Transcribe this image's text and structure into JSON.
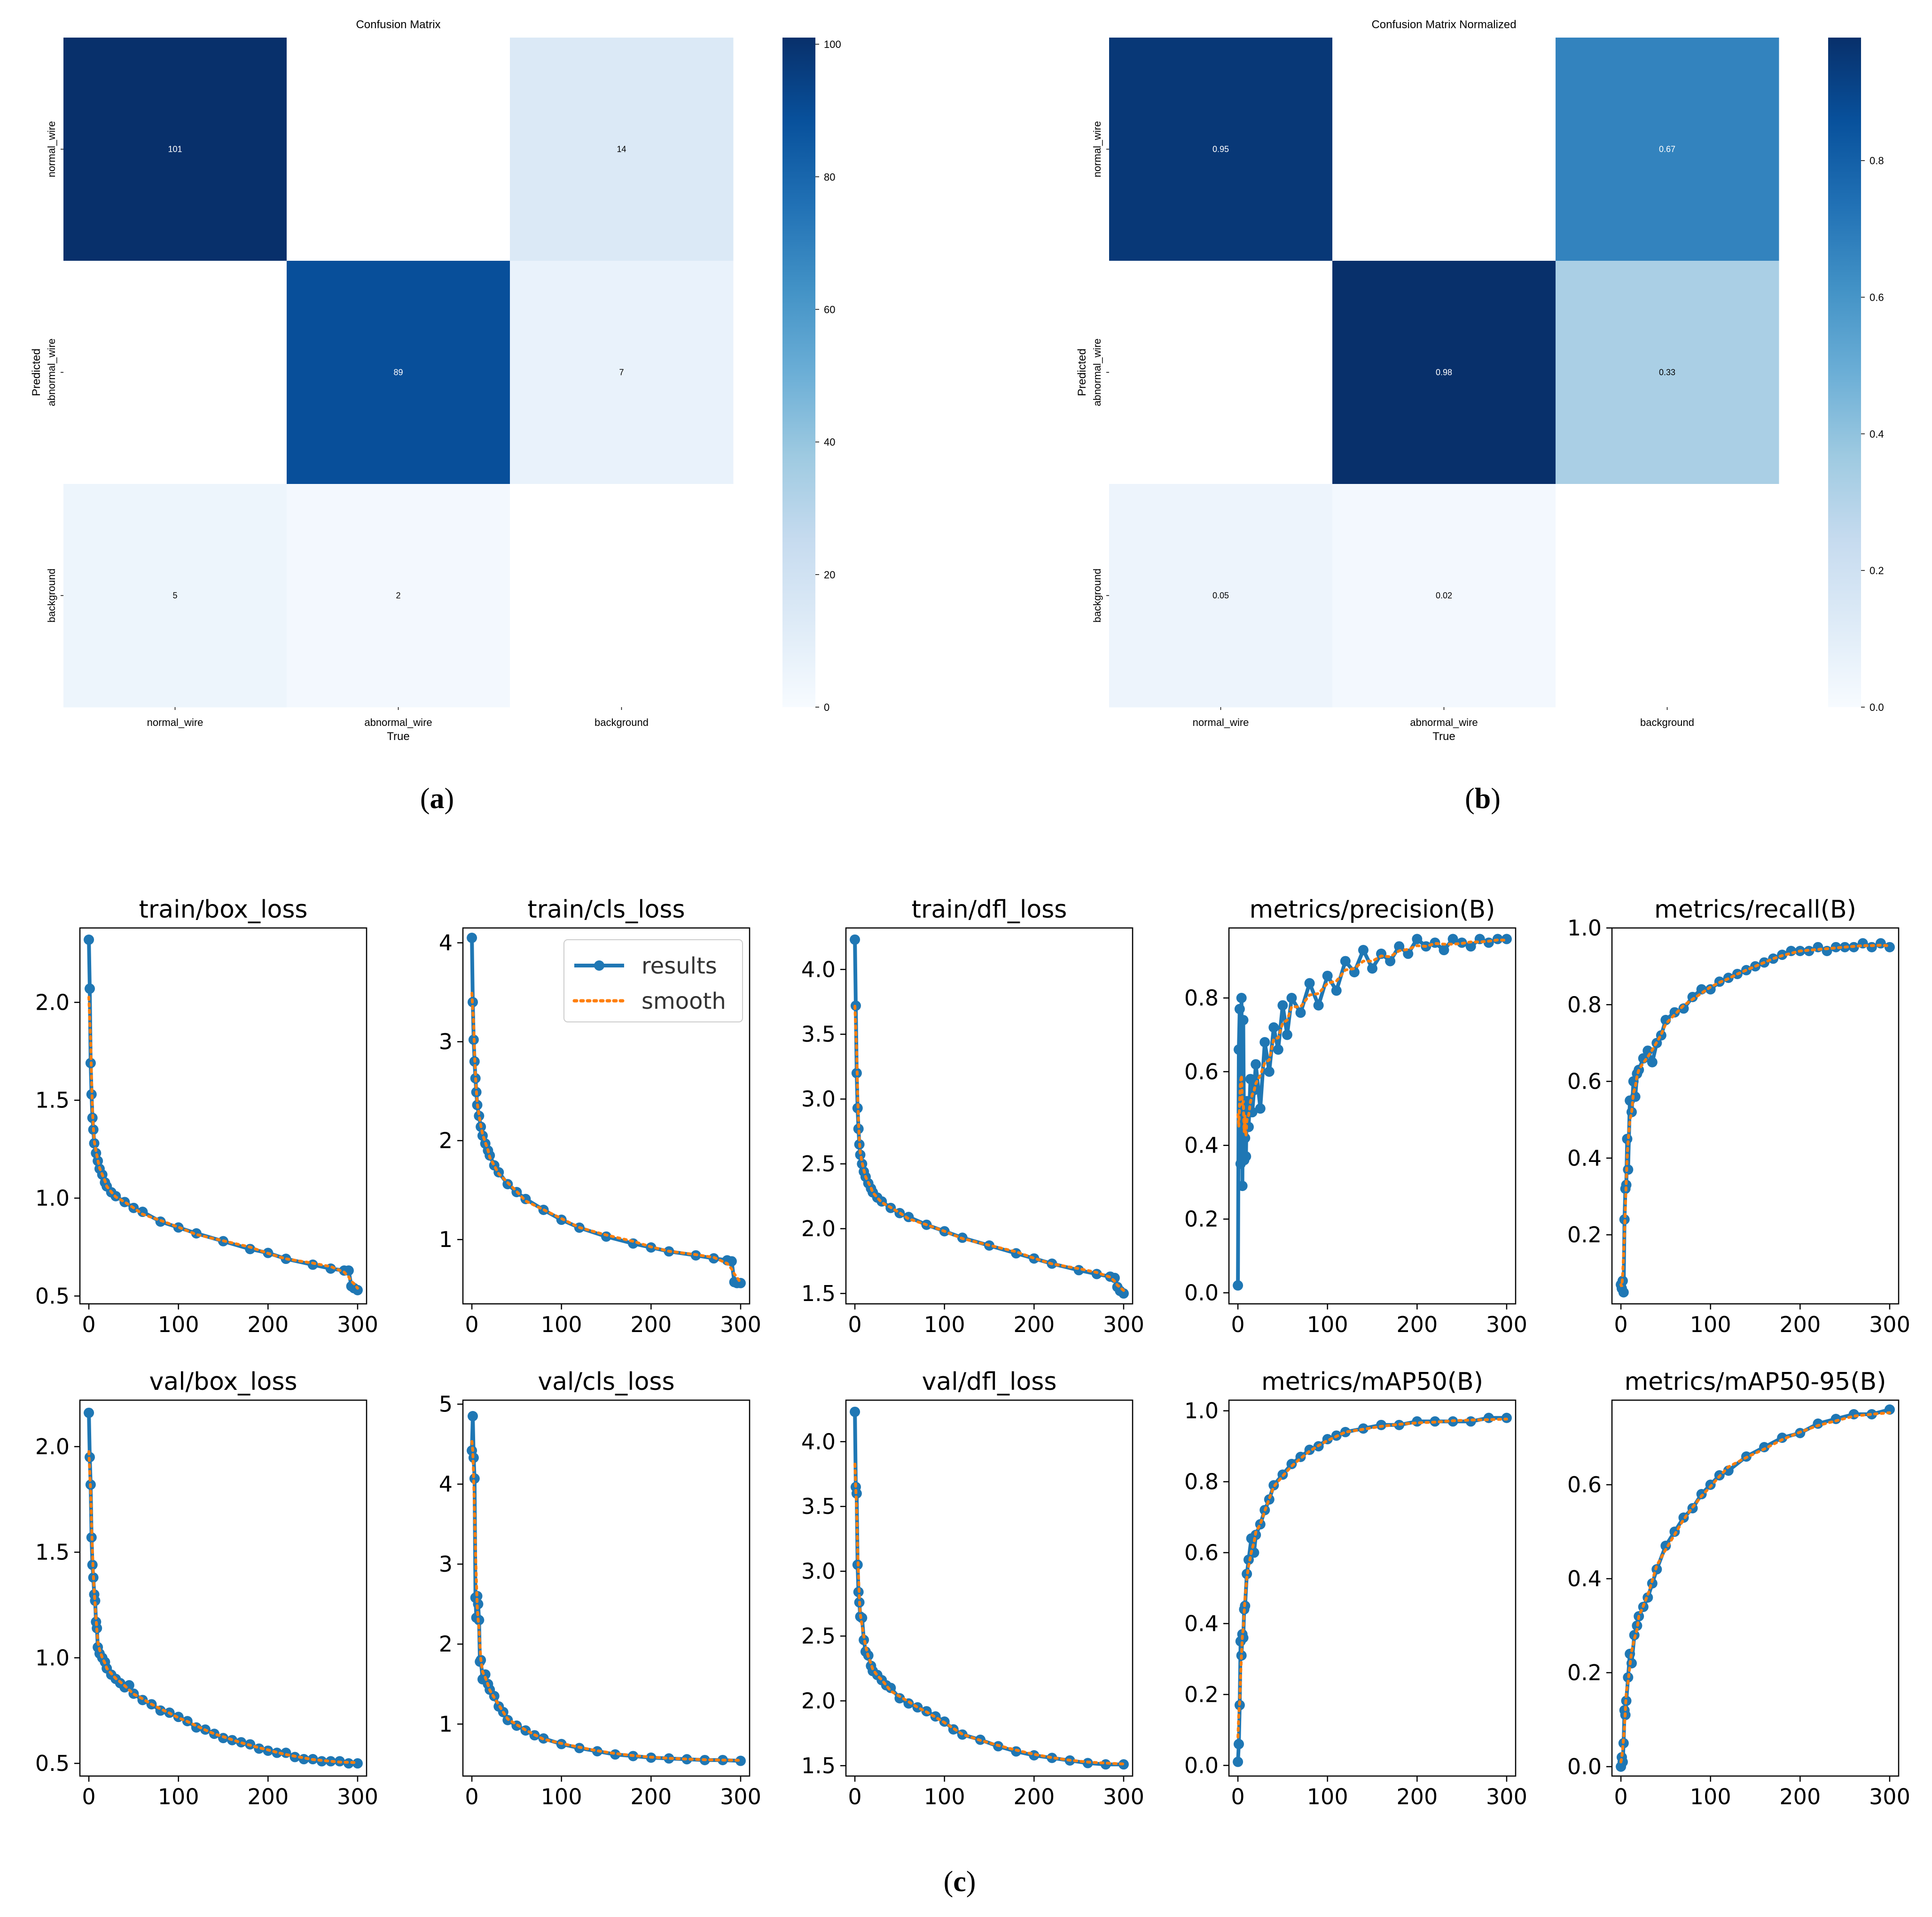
{
  "captions": {
    "a": "a",
    "b": "b",
    "c": "c"
  },
  "chart_data": [
    {
      "id": "cm_a",
      "type": "heatmap",
      "title": "Confusion Matrix",
      "xlabel": "True",
      "ylabel": "Predicted",
      "x_categories": [
        "normal_wire",
        "abnormal_wire",
        "background"
      ],
      "y_categories": [
        "normal_wire",
        "abnormal_wire",
        "background"
      ],
      "matrix": [
        [
          101,
          null,
          14
        ],
        [
          null,
          89,
          7
        ],
        [
          5,
          2,
          null
        ]
      ],
      "labels": [
        [
          "101",
          "",
          "14"
        ],
        [
          "",
          "89",
          "7"
        ],
        [
          "5",
          "2",
          ""
        ]
      ],
      "colorbar": {
        "min": 0,
        "max": 101,
        "ticks": [
          "0",
          "20",
          "40",
          "60",
          "80",
          "100"
        ],
        "tick_values": [
          0,
          20,
          40,
          60,
          80,
          100
        ]
      }
    },
    {
      "id": "cm_b",
      "type": "heatmap",
      "title": "Confusion Matrix Normalized",
      "xlabel": "True",
      "ylabel": "Predicted",
      "x_categories": [
        "normal_wire",
        "abnormal_wire",
        "background"
      ],
      "y_categories": [
        "normal_wire",
        "abnormal_wire",
        "background"
      ],
      "matrix": [
        [
          0.95,
          null,
          0.67
        ],
        [
          null,
          0.98,
          0.33
        ],
        [
          0.05,
          0.02,
          null
        ]
      ],
      "labels": [
        [
          "0.95",
          "",
          "0.67"
        ],
        [
          "",
          "0.98",
          "0.33"
        ],
        [
          "0.05",
          "0.02",
          ""
        ]
      ],
      "colorbar": {
        "min": 0,
        "max": 0.98,
        "ticks": [
          "0.0",
          "0.2",
          "0.4",
          "0.6",
          "0.8"
        ],
        "tick_values": [
          0,
          0.2,
          0.4,
          0.6,
          0.8
        ]
      }
    },
    {
      "id": "train_box_loss",
      "type": "line",
      "title": "train/box_loss",
      "xlim": [
        -10,
        310
      ],
      "ylim": [
        0.46,
        2.38
      ],
      "xticks": [
        0,
        100,
        200,
        300
      ],
      "yticks": [
        0.5,
        1.0,
        1.5,
        2.0
      ],
      "ytick_labels": [
        "0.5",
        "1.0",
        "1.5",
        "2.0"
      ],
      "x": [
        0,
        1,
        2,
        3,
        4,
        5,
        6,
        8,
        10,
        12,
        15,
        18,
        20,
        25,
        30,
        40,
        50,
        60,
        80,
        100,
        120,
        150,
        180,
        200,
        220,
        250,
        270,
        285,
        290,
        293,
        296,
        300
      ],
      "y": [
        2.32,
        2.07,
        1.69,
        1.53,
        1.41,
        1.35,
        1.28,
        1.23,
        1.19,
        1.15,
        1.12,
        1.08,
        1.06,
        1.03,
        1.01,
        0.98,
        0.95,
        0.93,
        0.88,
        0.85,
        0.82,
        0.78,
        0.74,
        0.72,
        0.69,
        0.66,
        0.64,
        0.63,
        0.63,
        0.55,
        0.54,
        0.53
      ]
    },
    {
      "id": "train_cls_loss",
      "type": "line",
      "title": "train/cls_loss",
      "xlim": [
        -10,
        310
      ],
      "ylim": [
        0.35,
        4.15
      ],
      "xticks": [
        0,
        100,
        200,
        300
      ],
      "yticks": [
        1,
        2,
        3,
        4
      ],
      "ytick_labels": [
        "1",
        "2",
        "3",
        "4"
      ],
      "x": [
        0,
        1,
        2,
        3,
        4,
        5,
        6,
        8,
        10,
        12,
        15,
        18,
        20,
        25,
        30,
        40,
        50,
        60,
        80,
        100,
        120,
        150,
        180,
        200,
        220,
        250,
        270,
        285,
        290,
        293,
        296,
        300
      ],
      "y": [
        4.05,
        3.4,
        3.02,
        2.8,
        2.63,
        2.49,
        2.36,
        2.25,
        2.14,
        2.05,
        1.97,
        1.9,
        1.85,
        1.75,
        1.68,
        1.56,
        1.48,
        1.41,
        1.3,
        1.2,
        1.12,
        1.03,
        0.96,
        0.92,
        0.88,
        0.84,
        0.81,
        0.79,
        0.78,
        0.57,
        0.56,
        0.56
      ]
    },
    {
      "id": "train_dfl_loss",
      "type": "line",
      "title": "train/dfl_loss",
      "xlim": [
        -10,
        310
      ],
      "ylim": [
        1.42,
        4.32
      ],
      "xticks": [
        0,
        100,
        200,
        300
      ],
      "yticks": [
        1.5,
        2.0,
        2.5,
        3.0,
        3.5,
        4.0
      ],
      "ytick_labels": [
        "1.5",
        "2.0",
        "2.5",
        "3.0",
        "3.5",
        "4.0"
      ],
      "x": [
        0,
        1,
        2,
        3,
        4,
        5,
        6,
        8,
        10,
        12,
        15,
        18,
        20,
        25,
        30,
        40,
        50,
        60,
        80,
        100,
        120,
        150,
        180,
        200,
        220,
        250,
        270,
        285,
        290,
        293,
        296,
        300
      ],
      "y": [
        4.23,
        3.72,
        3.2,
        2.93,
        2.77,
        2.65,
        2.57,
        2.5,
        2.44,
        2.4,
        2.35,
        2.31,
        2.28,
        2.24,
        2.21,
        2.16,
        2.12,
        2.09,
        2.03,
        1.98,
        1.93,
        1.87,
        1.81,
        1.77,
        1.73,
        1.68,
        1.65,
        1.63,
        1.62,
        1.55,
        1.52,
        1.5
      ]
    },
    {
      "id": "metrics_precision",
      "type": "line",
      "title": "metrics/precision(B)",
      "xlim": [
        -10,
        310
      ],
      "ylim": [
        -0.03,
        0.99
      ],
      "xticks": [
        0,
        100,
        200,
        300
      ],
      "yticks": [
        0.0,
        0.2,
        0.4,
        0.6,
        0.8
      ],
      "ytick_labels": [
        "0.0",
        "0.2",
        "0.4",
        "0.6",
        "0.8"
      ],
      "x": [
        0,
        1,
        2,
        3,
        4,
        5,
        6,
        7,
        8,
        9,
        10,
        12,
        14,
        16,
        18,
        20,
        25,
        30,
        35,
        40,
        45,
        50,
        55,
        60,
        70,
        80,
        90,
        100,
        110,
        120,
        130,
        140,
        150,
        160,
        170,
        180,
        190,
        200,
        210,
        220,
        230,
        240,
        250,
        260,
        270,
        280,
        290,
        300
      ],
      "y": [
        0.02,
        0.66,
        0.77,
        0.35,
        0.8,
        0.29,
        0.74,
        0.36,
        0.42,
        0.37,
        0.52,
        0.45,
        0.58,
        0.49,
        0.55,
        0.62,
        0.5,
        0.68,
        0.6,
        0.72,
        0.66,
        0.78,
        0.7,
        0.8,
        0.76,
        0.84,
        0.78,
        0.86,
        0.82,
        0.9,
        0.87,
        0.93,
        0.88,
        0.92,
        0.9,
        0.94,
        0.92,
        0.96,
        0.94,
        0.95,
        0.93,
        0.96,
        0.95,
        0.94,
        0.96,
        0.95,
        0.96,
        0.96
      ]
    },
    {
      "id": "metrics_recall",
      "type": "line",
      "title": "metrics/recall(B)",
      "xlim": [
        -10,
        310
      ],
      "ylim": [
        0.02,
        1.0
      ],
      "xticks": [
        0,
        100,
        200,
        300
      ],
      "yticks": [
        0.2,
        0.4,
        0.6,
        0.8,
        1.0
      ],
      "ytick_labels": [
        "0.2",
        "0.4",
        "0.6",
        "0.8",
        "1.0"
      ],
      "x": [
        0,
        1,
        2,
        3,
        4,
        5,
        6,
        7,
        8,
        10,
        12,
        14,
        16,
        18,
        20,
        25,
        30,
        35,
        40,
        45,
        50,
        60,
        70,
        80,
        90,
        100,
        110,
        120,
        130,
        140,
        150,
        160,
        170,
        180,
        190,
        200,
        210,
        220,
        230,
        240,
        250,
        260,
        270,
        280,
        290,
        300
      ],
      "y": [
        0.07,
        0.06,
        0.08,
        0.05,
        0.24,
        0.32,
        0.33,
        0.45,
        0.37,
        0.55,
        0.52,
        0.6,
        0.56,
        0.62,
        0.63,
        0.66,
        0.68,
        0.65,
        0.7,
        0.72,
        0.76,
        0.78,
        0.79,
        0.82,
        0.84,
        0.84,
        0.86,
        0.87,
        0.88,
        0.89,
        0.9,
        0.91,
        0.92,
        0.93,
        0.94,
        0.94,
        0.94,
        0.95,
        0.94,
        0.95,
        0.95,
        0.95,
        0.96,
        0.95,
        0.96,
        0.95
      ]
    },
    {
      "id": "val_box_loss",
      "type": "line",
      "title": "val/box_loss",
      "xlim": [
        -10,
        310
      ],
      "ylim": [
        0.44,
        2.22
      ],
      "xticks": [
        0,
        100,
        200,
        300
      ],
      "yticks": [
        0.5,
        1.0,
        1.5,
        2.0
      ],
      "ytick_labels": [
        "0.5",
        "1.0",
        "1.5",
        "2.0"
      ],
      "x": [
        0,
        1,
        2,
        3,
        4,
        5,
        6,
        7,
        8,
        9,
        10,
        12,
        15,
        18,
        20,
        25,
        30,
        35,
        40,
        45,
        50,
        60,
        70,
        80,
        90,
        100,
        110,
        120,
        130,
        140,
        150,
        160,
        170,
        180,
        190,
        200,
        210,
        220,
        230,
        240,
        250,
        260,
        270,
        280,
        290,
        300
      ],
      "y": [
        2.16,
        1.95,
        1.82,
        1.57,
        1.44,
        1.38,
        1.3,
        1.27,
        1.17,
        1.14,
        1.05,
        1.02,
        1.0,
        0.98,
        0.95,
        0.92,
        0.9,
        0.88,
        0.86,
        0.87,
        0.83,
        0.8,
        0.78,
        0.75,
        0.74,
        0.72,
        0.7,
        0.67,
        0.66,
        0.64,
        0.62,
        0.61,
        0.6,
        0.59,
        0.57,
        0.56,
        0.55,
        0.55,
        0.53,
        0.52,
        0.52,
        0.51,
        0.51,
        0.51,
        0.5,
        0.5
      ]
    },
    {
      "id": "val_cls_loss",
      "type": "line",
      "title": "val/cls_loss",
      "xlim": [
        -10,
        310
      ],
      "ylim": [
        0.35,
        5.05
      ],
      "xticks": [
        0,
        100,
        200,
        300
      ],
      "yticks": [
        1,
        2,
        3,
        4,
        5
      ],
      "ytick_labels": [
        "1",
        "2",
        "3",
        "4",
        "5"
      ],
      "x": [
        0,
        1,
        2,
        3,
        4,
        5,
        6,
        7,
        8,
        9,
        10,
        12,
        15,
        18,
        20,
        25,
        30,
        35,
        40,
        50,
        60,
        70,
        80,
        100,
        120,
        140,
        160,
        180,
        200,
        220,
        240,
        260,
        280,
        300
      ],
      "y": [
        4.42,
        4.85,
        4.33,
        4.07,
        2.58,
        2.33,
        2.6,
        2.5,
        2.3,
        1.78,
        1.8,
        1.56,
        1.62,
        1.5,
        1.43,
        1.35,
        1.22,
        1.15,
        1.05,
        0.98,
        0.92,
        0.86,
        0.82,
        0.75,
        0.7,
        0.66,
        0.62,
        0.6,
        0.58,
        0.57,
        0.56,
        0.55,
        0.55,
        0.54
      ]
    },
    {
      "id": "val_dfl_loss",
      "type": "line",
      "title": "val/dfl_loss",
      "xlim": [
        -10,
        310
      ],
      "ylim": [
        1.42,
        4.32
      ],
      "xticks": [
        0,
        100,
        200,
        300
      ],
      "yticks": [
        1.5,
        2.0,
        2.5,
        3.0,
        3.5,
        4.0
      ],
      "ytick_labels": [
        "1.5",
        "2.0",
        "2.5",
        "3.0",
        "3.5",
        "4.0"
      ],
      "x": [
        0,
        1,
        2,
        3,
        4,
        5,
        6,
        8,
        10,
        12,
        15,
        18,
        20,
        25,
        30,
        35,
        40,
        50,
        60,
        70,
        80,
        90,
        100,
        110,
        120,
        140,
        160,
        180,
        200,
        220,
        240,
        260,
        280,
        300
      ],
      "y": [
        4.23,
        3.65,
        3.6,
        3.05,
        2.84,
        2.76,
        2.65,
        2.64,
        2.47,
        2.38,
        2.35,
        2.27,
        2.23,
        2.2,
        2.16,
        2.12,
        2.1,
        2.02,
        1.98,
        1.95,
        1.92,
        1.88,
        1.84,
        1.78,
        1.74,
        1.7,
        1.65,
        1.61,
        1.58,
        1.56,
        1.54,
        1.52,
        1.51,
        1.51
      ]
    },
    {
      "id": "metrics_map50",
      "type": "line",
      "title": "metrics/mAP50(B)",
      "xlim": [
        -10,
        310
      ],
      "ylim": [
        -0.03,
        1.03
      ],
      "xticks": [
        0,
        100,
        200,
        300
      ],
      "yticks": [
        0.0,
        0.2,
        0.4,
        0.6,
        0.8,
        1.0
      ],
      "ytick_labels": [
        "0.0",
        "0.2",
        "0.4",
        "0.6",
        "0.8",
        "1.0"
      ],
      "x": [
        0,
        1,
        2,
        3,
        4,
        5,
        6,
        7,
        8,
        10,
        12,
        15,
        18,
        20,
        25,
        30,
        35,
        40,
        50,
        60,
        70,
        80,
        90,
        100,
        110,
        120,
        140,
        160,
        180,
        200,
        220,
        240,
        260,
        280,
        300
      ],
      "y": [
        0.01,
        0.06,
        0.17,
        0.35,
        0.31,
        0.37,
        0.36,
        0.44,
        0.45,
        0.54,
        0.58,
        0.64,
        0.6,
        0.65,
        0.68,
        0.72,
        0.75,
        0.79,
        0.82,
        0.85,
        0.87,
        0.89,
        0.9,
        0.92,
        0.93,
        0.94,
        0.95,
        0.96,
        0.96,
        0.97,
        0.97,
        0.97,
        0.97,
        0.98,
        0.98
      ]
    },
    {
      "id": "metrics_map50_95",
      "type": "line",
      "title": "metrics/mAP50-95(B)",
      "xlim": [
        -10,
        310
      ],
      "ylim": [
        -0.02,
        0.78
      ],
      "xticks": [
        0,
        100,
        200,
        300
      ],
      "yticks": [
        0.0,
        0.2,
        0.4,
        0.6
      ],
      "ytick_labels": [
        "0.0",
        "0.2",
        "0.4",
        "0.6"
      ],
      "x": [
        0,
        1,
        2,
        3,
        4,
        5,
        6,
        8,
        10,
        12,
        15,
        18,
        20,
        25,
        30,
        35,
        40,
        50,
        60,
        70,
        80,
        90,
        100,
        110,
        120,
        140,
        160,
        180,
        200,
        220,
        240,
        260,
        280,
        300
      ],
      "y": [
        0.0,
        0.02,
        0.01,
        0.05,
        0.12,
        0.11,
        0.14,
        0.19,
        0.24,
        0.22,
        0.28,
        0.3,
        0.32,
        0.34,
        0.36,
        0.39,
        0.42,
        0.47,
        0.5,
        0.53,
        0.55,
        0.58,
        0.6,
        0.62,
        0.63,
        0.66,
        0.68,
        0.7,
        0.71,
        0.73,
        0.74,
        0.75,
        0.75,
        0.76
      ]
    }
  ],
  "legend": {
    "results": "results",
    "smooth": "smooth"
  },
  "colors": {
    "series": "#1f77b4",
    "smooth": "#ff7f0e",
    "cmap_low": "#f7fbff",
    "cmap_high": "#08306b"
  }
}
